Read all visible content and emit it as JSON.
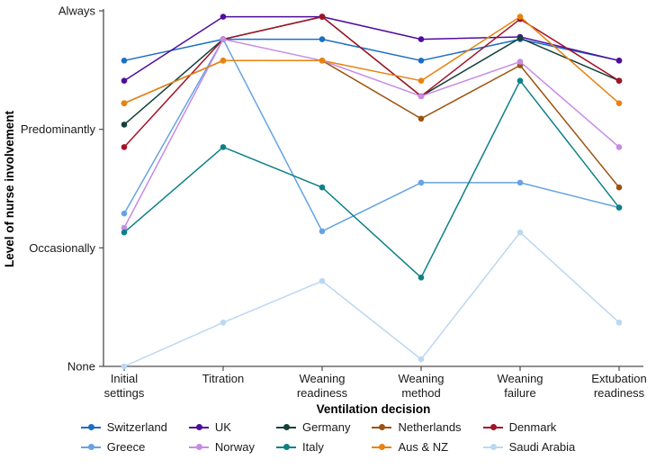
{
  "chart_data": {
    "type": "line",
    "title": "",
    "xlabel": "Ventilation decision",
    "ylabel": "Level of nurse involvement",
    "grid": false,
    "legend_position": "bottom",
    "ylim": [
      0,
      3
    ],
    "y_tick_values": [
      0,
      1,
      2,
      3
    ],
    "y_tick_labels": [
      "None",
      "Occasionally",
      "Predominantly",
      "Always"
    ],
    "categories": [
      "Initial settings",
      "Titration",
      "Weaning readiness",
      "Weaning method",
      "Weaning failure",
      "Extubation readiness"
    ],
    "series": [
      {
        "name": "Switzerland",
        "color": "#1b6fc4",
        "values": [
          2.58,
          2.76,
          2.76,
          2.58,
          2.76,
          2.58
        ]
      },
      {
        "name": "UK",
        "color": "#4f0d9e",
        "values": [
          2.41,
          2.95,
          2.95,
          2.76,
          2.78,
          2.58
        ]
      },
      {
        "name": "Germany",
        "color": "#14413a",
        "values": [
          2.04,
          2.76,
          2.95,
          2.28,
          2.77,
          2.41
        ]
      },
      {
        "name": "Netherlands",
        "color": "#9c520f",
        "values": [
          2.22,
          2.58,
          2.58,
          2.09,
          2.54,
          1.51
        ]
      },
      {
        "name": "Denmark",
        "color": "#a31327",
        "values": [
          1.85,
          2.76,
          2.95,
          2.28,
          2.93,
          2.41
        ]
      },
      {
        "name": "Greece",
        "color": "#66a3e3",
        "values": [
          1.29,
          2.76,
          1.14,
          1.55,
          1.55,
          1.34
        ]
      },
      {
        "name": "Norway",
        "color": "#c78be5",
        "values": [
          1.17,
          2.76,
          2.58,
          2.28,
          2.57,
          1.85
        ]
      },
      {
        "name": "Italy",
        "color": "#0e8087",
        "values": [
          1.13,
          1.85,
          1.51,
          0.75,
          2.41,
          1.34
        ]
      },
      {
        "name": "Aus & NZ",
        "color": "#e8820e",
        "values": [
          2.22,
          2.58,
          2.58,
          2.41,
          2.95,
          2.22
        ]
      },
      {
        "name": "Saudi Arabia",
        "color": "#bcd7f2",
        "values": [
          0.0,
          0.37,
          0.72,
          0.06,
          1.13,
          0.37
        ]
      }
    ],
    "colors": {
      "axis": "#4d4d4d",
      "text": "#1a1a1a",
      "background": "#ffffff"
    }
  }
}
